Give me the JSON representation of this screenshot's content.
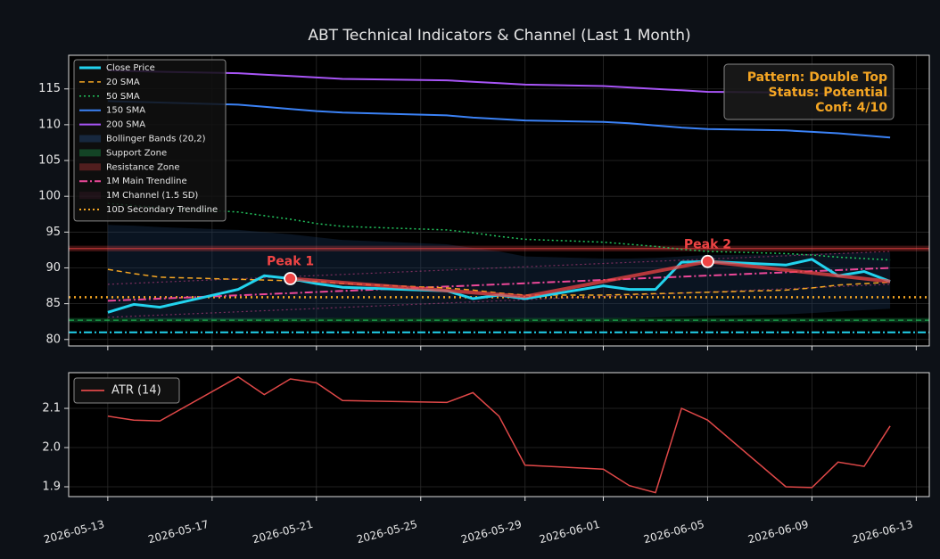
{
  "chart_data": [
    {
      "type": "line",
      "title": "ABT Technical Indicators & Channel (Last 1 Month)",
      "x": [
        "2026-05-13",
        "2026-05-14",
        "2026-05-15",
        "2026-05-18",
        "2026-05-19",
        "2026-05-20",
        "2026-05-21",
        "2026-05-22",
        "2026-05-26",
        "2026-05-27",
        "2026-05-28",
        "2026-05-29",
        "2026-06-01",
        "2026-06-02",
        "2026-06-03",
        "2026-06-04",
        "2026-06-05",
        "2026-06-08",
        "2026-06-09",
        "2026-06-10",
        "2026-06-11",
        "2026-06-12"
      ],
      "xlim": [
        "2026-05-11T12:00",
        "2026-06-13T12:00"
      ],
      "xticks": [
        "2026-05-13",
        "2026-05-17",
        "2026-05-21",
        "2026-05-25",
        "2026-05-29",
        "2026-06-01",
        "2026-06-05",
        "2026-06-09",
        "2026-06-13"
      ],
      "ylim": [
        79.1,
        119.7
      ],
      "yticks": [
        80,
        85,
        90,
        95,
        100,
        105,
        110,
        115
      ],
      "grid": true,
      "legend_loc": "upper left",
      "series": [
        {
          "name": "Close Price",
          "color": "#22d3ee",
          "width": 3,
          "dash": "solid",
          "values": [
            83.8,
            84.9,
            84.5,
            87.0,
            88.9,
            88.5,
            87.8,
            87.3,
            86.8,
            85.7,
            86.2,
            85.7,
            87.5,
            87.0,
            87.0,
            90.8,
            90.9,
            90.4,
            91.2,
            88.9,
            89.5,
            88.1
          ]
        },
        {
          "name": "20 SMA",
          "color": "#f5a623",
          "width": 1.5,
          "dash": "dashed",
          "values": [
            89.8,
            89.2,
            88.7,
            88.4,
            88.3,
            88.2,
            88.1,
            87.8,
            87.2,
            86.9,
            86.5,
            86.2,
            86.2,
            86.3,
            86.4,
            86.5,
            86.6,
            86.9,
            87.2,
            87.6,
            87.8,
            88.0
          ]
        },
        {
          "name": "50 SMA",
          "color": "#22c55e",
          "width": 1.5,
          "dash": "dotted",
          "values": [
            99.0,
            98.7,
            98.4,
            97.8,
            97.3,
            96.8,
            96.2,
            95.8,
            95.3,
            94.9,
            94.4,
            94.0,
            93.6,
            93.3,
            93.0,
            92.6,
            92.3,
            92.0,
            91.8,
            91.5,
            91.3,
            91.1
          ]
        },
        {
          "name": "150 SMA",
          "color": "#3b82f6",
          "width": 2,
          "dash": "solid",
          "values": [
            113.3,
            113.2,
            113.1,
            112.8,
            112.5,
            112.2,
            111.9,
            111.7,
            111.3,
            111.0,
            110.8,
            110.6,
            110.4,
            110.2,
            109.9,
            109.6,
            109.4,
            109.2,
            109.0,
            108.8,
            108.5,
            108.2
          ]
        },
        {
          "name": "200 SMA",
          "color": "#a855f7",
          "width": 2,
          "dash": "solid",
          "values": [
            117.6,
            117.5,
            117.4,
            117.2,
            117.0,
            116.8,
            116.6,
            116.4,
            116.2,
            116.0,
            115.8,
            115.6,
            115.4,
            115.2,
            115.0,
            114.8,
            114.6,
            114.5,
            114.4,
            114.3,
            114.1,
            114.0
          ]
        }
      ],
      "bollinger": {
        "name": "Bollinger Bands (20,2)",
        "color": "#1e3a5f",
        "upper": [
          96.0,
          95.9,
          95.7,
          95.3,
          95.0,
          94.7,
          94.3,
          93.9,
          93.3,
          92.8,
          92.3,
          91.6,
          91.3,
          91.3,
          91.4,
          91.6,
          91.8,
          91.9,
          92.0,
          92.1,
          92.2,
          92.2
        ],
        "lower": [
          83.0,
          82.9,
          82.8,
          82.7,
          82.8,
          82.8,
          82.9,
          83.0,
          83.0,
          83.0,
          83.0,
          82.9,
          82.9,
          83.0,
          83.1,
          83.2,
          83.3,
          83.5,
          83.7,
          83.9,
          84.1,
          84.3
        ]
      },
      "support_zone": {
        "name": "Support Zone",
        "color": "#22c55e",
        "low": 82.4,
        "high": 83.0
      },
      "resistance_zone": {
        "name": "Resistance Zone",
        "color": "#ef4444",
        "low": 92.3,
        "high": 93.1
      },
      "levels": [
        {
          "value": 81.0,
          "color": "#22d3ee",
          "dash": "dashdot"
        }
      ],
      "trendline": {
        "name": "1M Main Trendline",
        "color": "#ec4899",
        "dash": "dashdot",
        "x": [
          "2026-05-13",
          "2026-06-12"
        ],
        "values": [
          85.4,
          90.0
        ]
      },
      "channel": {
        "name": "1M Channel (1.5 SD)",
        "color": "#ec4899",
        "x": [
          "2026-05-13",
          "2026-06-12"
        ],
        "upper": [
          87.7,
          92.3
        ],
        "lower": [
          83.1,
          87.7
        ]
      },
      "secondary_trendline": {
        "name": "10D Secondary Trendline",
        "color": "#f5a623",
        "value": 85.9
      },
      "pattern_line": {
        "color": "#ef4444",
        "x": [
          "2026-05-20",
          "2026-05-29",
          "2026-06-05",
          "2026-06-12"
        ],
        "values": [
          88.5,
          86.0,
          90.9,
          88.1
        ]
      },
      "peaks": [
        {
          "label": "Peak 1",
          "x": "2026-05-20",
          "value": 88.5
        },
        {
          "label": "Peak 2",
          "x": "2026-06-05",
          "value": 90.9
        }
      ],
      "annotation": [
        "Pattern: Double Top",
        "Status: Potential",
        "Conf: 4/10"
      ]
    },
    {
      "type": "line",
      "x": [
        "2026-05-13",
        "2026-05-14",
        "2026-05-15",
        "2026-05-18",
        "2026-05-19",
        "2026-05-20",
        "2026-05-21",
        "2026-05-22",
        "2026-05-26",
        "2026-05-27",
        "2026-05-28",
        "2026-05-29",
        "2026-06-01",
        "2026-06-02",
        "2026-06-03",
        "2026-06-04",
        "2026-06-05",
        "2026-06-08",
        "2026-06-09",
        "2026-06-10",
        "2026-06-11",
        "2026-06-12"
      ],
      "xlim": [
        "2026-05-11T12:00",
        "2026-06-13T12:00"
      ],
      "xticks": [
        "2026-05-13",
        "2026-05-17",
        "2026-05-21",
        "2026-05-25",
        "2026-05-29",
        "2026-06-01",
        "2026-06-05",
        "2026-06-09",
        "2026-06-13"
      ],
      "ylim": [
        1.875,
        2.191
      ],
      "yticks": [
        1.9,
        {
          "value": 2,
          "label": "2.0"
        },
        2.1
      ],
      "grid": true,
      "legend_loc": "upper left",
      "series": [
        {
          "name": "ATR (14)",
          "color": "#e04848",
          "values": [
            2.08,
            2.07,
            2.068,
            2.18,
            2.135,
            2.175,
            2.165,
            2.12,
            2.115,
            2.14,
            2.08,
            1.955,
            1.945,
            1.903,
            1.885,
            2.1,
            2.07,
            1.9,
            1.898,
            1.963,
            1.952,
            2.055
          ]
        }
      ]
    }
  ]
}
